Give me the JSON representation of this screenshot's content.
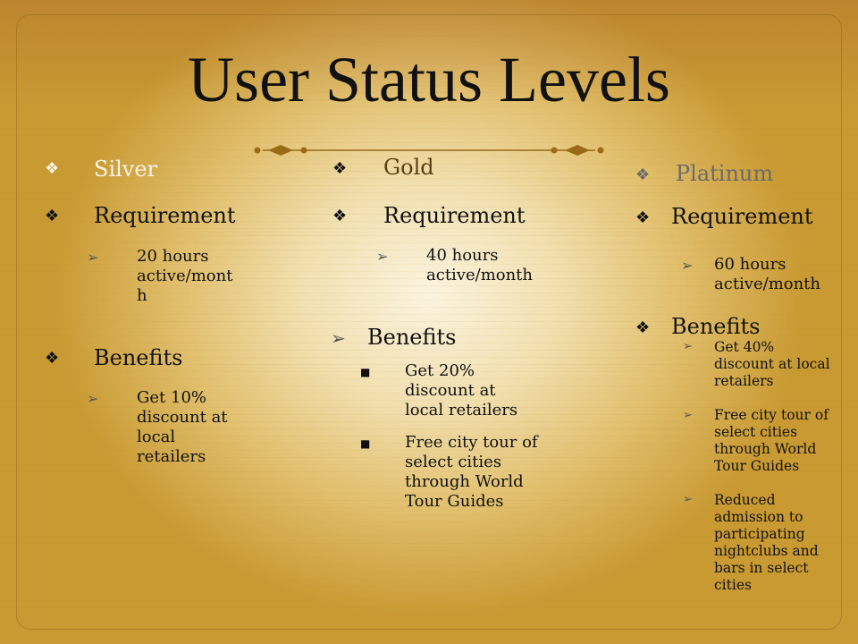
{
  "title": "User Status Levels",
  "columns": [
    {
      "name": "Silver",
      "requirement_label": "Requirement",
      "requirement": [
        "20 hours",
        "active/mont",
        "h"
      ],
      "benefits_label": "Benefits",
      "benefits": [
        [
          "Get 10%",
          "discount at",
          "local",
          "retailers"
        ]
      ]
    },
    {
      "name": "Gold",
      "requirement_label": "Requirement",
      "requirement": [
        "40 hours",
        "active/month"
      ],
      "benefits_label": "Benefits",
      "benefits": [
        [
          "Get 20%",
          "discount at",
          "local retailers"
        ],
        [
          "Free city tour of",
          "select cities",
          "through World",
          "Tour Guides"
        ]
      ]
    },
    {
      "name": "Platinum",
      "requirement_label": "Requirement",
      "requirement": [
        "60 hours",
        "active/month"
      ],
      "benefits_label": "Benefits",
      "benefits": [
        [
          "Get 40%",
          "discount at local",
          "retailers"
        ],
        [
          "Free city tour of",
          "select cities",
          "through World",
          "Tour Guides"
        ],
        [
          "Reduced",
          "admission to",
          "participating",
          "nightclubs and",
          "bars in select",
          "cities"
        ]
      ]
    }
  ],
  "icons": {
    "diamond_bullet": "diamond-bullet-icon",
    "arrow_bullet": "arrow-bullet-icon",
    "square_bullet": "square-bullet-icon"
  }
}
